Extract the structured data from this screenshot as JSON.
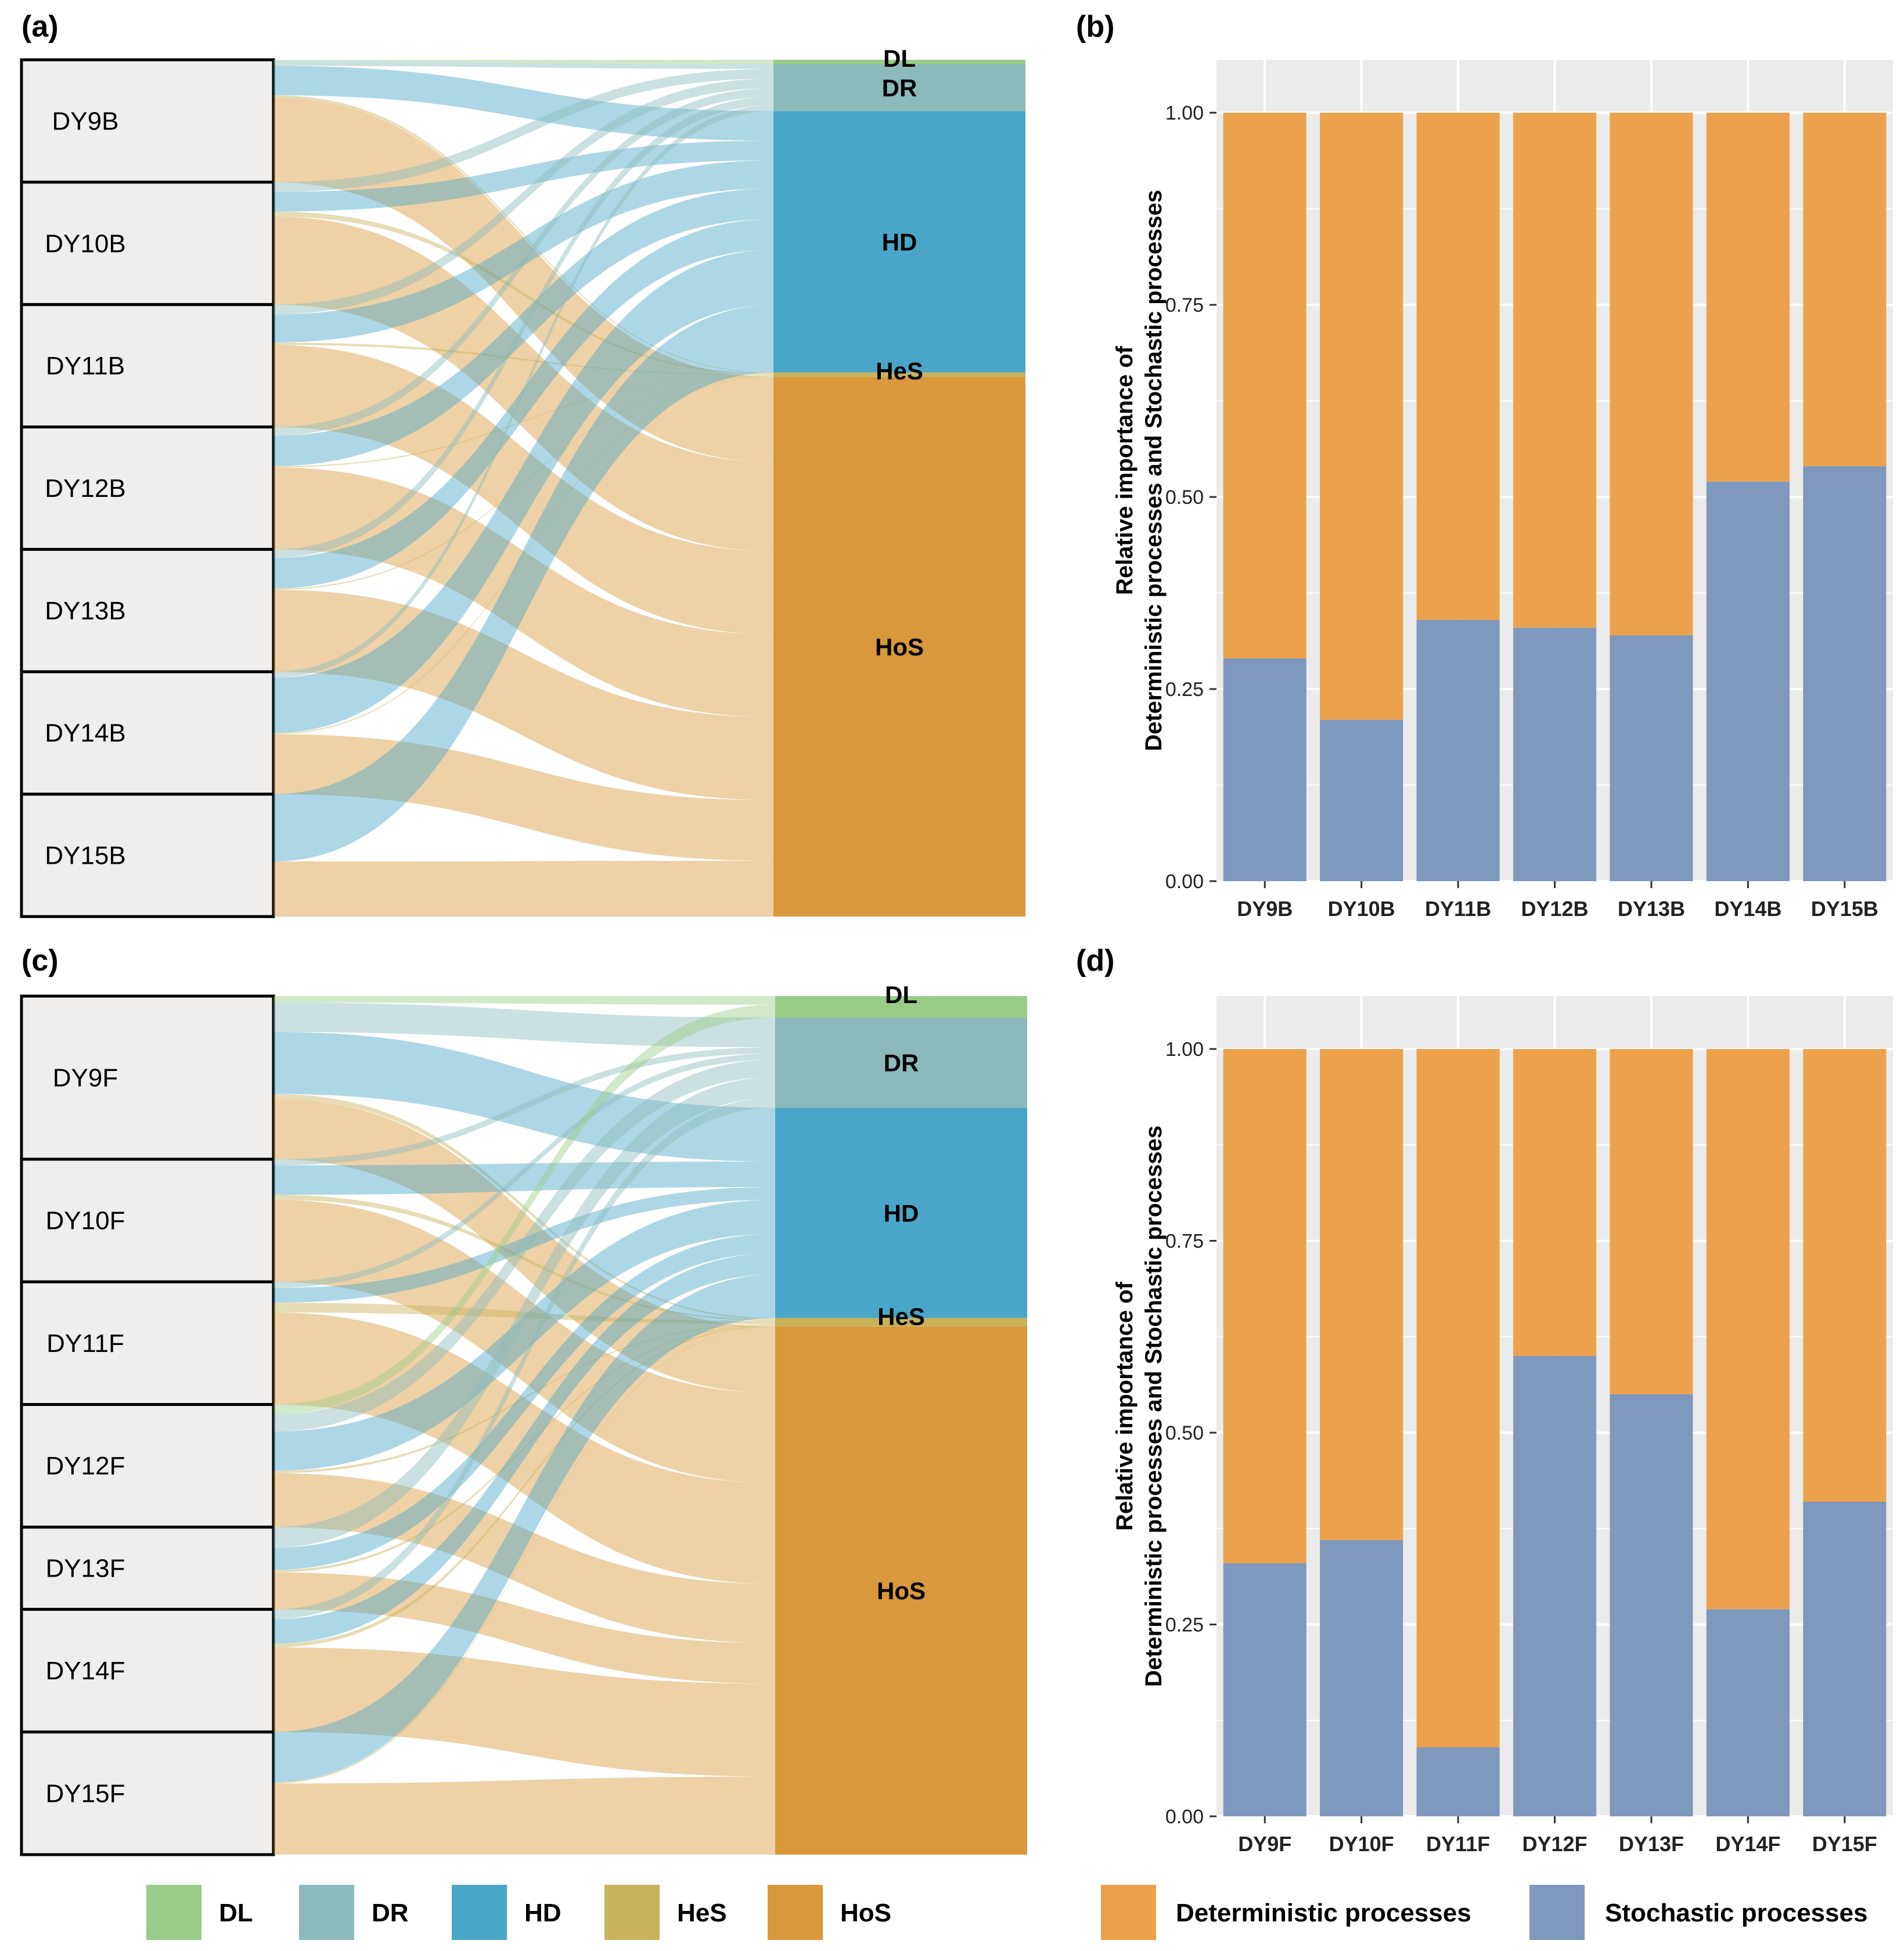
{
  "chart_data": [
    {
      "panel": "(a)",
      "type": "alluvial",
      "sources": [
        "DY9B",
        "DY10B",
        "DY11B",
        "DY12B",
        "DY13B",
        "DY14B",
        "DY15B"
      ],
      "targets": [
        "DL",
        "DR",
        "HD",
        "HeS",
        "HoS"
      ],
      "target_share": [
        0.005,
        0.055,
        0.305,
        0.005,
        0.63
      ],
      "source_share": [
        1,
        1,
        1,
        1,
        1,
        1,
        1
      ],
      "flows": [
        [
          0.01,
          0.04,
          0.24,
          0.02,
          0.69
        ],
        [
          0.0,
          0.08,
          0.16,
          0.04,
          0.72
        ],
        [
          0.0,
          0.08,
          0.23,
          0.02,
          0.67
        ],
        [
          0.0,
          0.07,
          0.25,
          0.01,
          0.67
        ],
        [
          0.0,
          0.07,
          0.25,
          0.01,
          0.67
        ],
        [
          0.0,
          0.05,
          0.45,
          0.01,
          0.49
        ],
        [
          0.0,
          0.0,
          0.55,
          0.0,
          0.45
        ]
      ]
    },
    {
      "panel": "(b)",
      "type": "bar",
      "stacked": true,
      "categories": [
        "DY9B",
        "DY10B",
        "DY11B",
        "DY12B",
        "DY13B",
        "DY14B",
        "DY15B"
      ],
      "series": [
        {
          "name": "Stochastic processes",
          "values": [
            0.29,
            0.21,
            0.34,
            0.33,
            0.32,
            0.52,
            0.54
          ]
        },
        {
          "name": "Deterministic processes",
          "values": [
            0.71,
            0.79,
            0.66,
            0.67,
            0.68,
            0.48,
            0.46
          ]
        }
      ],
      "yticks": [
        "0.00",
        "0.25",
        "0.50",
        "0.75",
        "1.00"
      ],
      "ylim": [
        0,
        1.05
      ],
      "ylabel_lines": [
        "Relative importance of",
        "Deterministic processes and Stochastic processes"
      ]
    },
    {
      "panel": "(c)",
      "type": "alluvial",
      "sources": [
        "DY9F",
        "DY10F",
        "DY11F",
        "DY12F",
        "DY13F",
        "DY14F",
        "DY15F"
      ],
      "targets": [
        "DL",
        "DR",
        "HD",
        "HeS",
        "HoS"
      ],
      "target_share": [
        0.025,
        0.105,
        0.245,
        0.01,
        0.615
      ],
      "source_share": [
        1.33,
        1.0,
        1.0,
        1.0,
        0.67,
        1.0,
        1.0
      ],
      "flows": [
        [
          0.04,
          0.18,
          0.38,
          0.03,
          0.37
        ],
        [
          0.0,
          0.05,
          0.24,
          0.04,
          0.67
        ],
        [
          0.0,
          0.05,
          0.12,
          0.08,
          0.75
        ],
        [
          0.08,
          0.14,
          0.32,
          0.02,
          0.44
        ],
        [
          0.0,
          0.25,
          0.27,
          0.03,
          0.45
        ],
        [
          0.0,
          0.08,
          0.2,
          0.03,
          0.69
        ],
        [
          0.0,
          0.0,
          0.41,
          0.01,
          0.58
        ]
      ]
    },
    {
      "panel": "(d)",
      "type": "bar",
      "stacked": true,
      "categories": [
        "DY9F",
        "DY10F",
        "DY11F",
        "DY12F",
        "DY13F",
        "DY14F",
        "DY15F"
      ],
      "series": [
        {
          "name": "Stochastic processes",
          "values": [
            0.33,
            0.36,
            0.09,
            0.6,
            0.55,
            0.27,
            0.41
          ]
        },
        {
          "name": "Deterministic processes",
          "values": [
            0.67,
            0.64,
            0.91,
            0.4,
            0.45,
            0.73,
            0.59
          ]
        }
      ],
      "yticks": [
        "0.00",
        "0.25",
        "0.50",
        "0.75",
        "1.00"
      ],
      "ylim": [
        0,
        1.05
      ],
      "ylabel_lines": [
        "Relative importance of",
        "Deterministic processes and Stochastic processes"
      ]
    }
  ],
  "colors": {
    "DL": "#99cc88",
    "DR": "#8cbabb",
    "HD": "#4aa6c8",
    "HeS": "#c8b25c",
    "HoS": "#da983c",
    "Deterministic processes": "#eca24d",
    "Stochastic processes": "#7f98bd",
    "panel_bg": "#ebebeb",
    "node_fill": "#efeeec"
  },
  "legend_left": [
    "DL",
    "DR",
    "HD",
    "HeS",
    "HoS"
  ],
  "legend_right": [
    "Deterministic processes",
    "Stochastic processes"
  ]
}
